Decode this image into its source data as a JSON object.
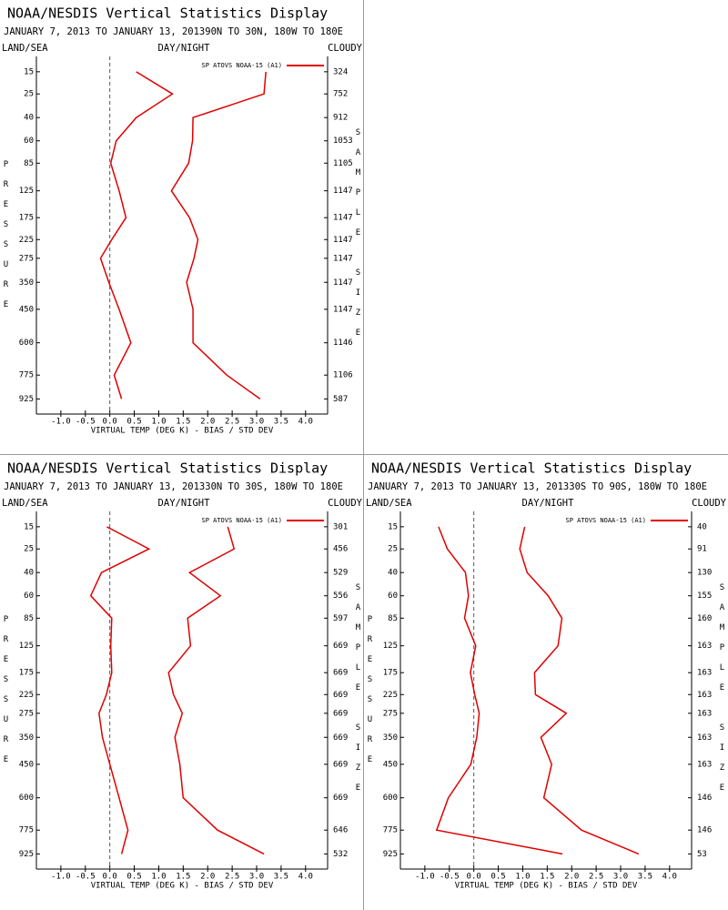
{
  "chart_data": [
    {
      "type": "line",
      "title": "NOAA/NESDIS Vertical Statistics Display",
      "subtitle": "JANUARY 7, 2013 TO JANUARY 13, 201390N TO 30N, 180W TO 180E",
      "header_left": "LAND/SEA",
      "header_center": "DAY/NIGHT",
      "header_right": "CLOUDY",
      "y_label": "PRESSURE",
      "y2_label": "SAMPLE SIZE",
      "x_label": "VIRTUAL TEMP (DEG K) - BIAS / STD DEV",
      "y": [
        15,
        25,
        40,
        60,
        85,
        125,
        175,
        225,
        275,
        350,
        450,
        600,
        775,
        925
      ],
      "sample_sizes": [
        324,
        752,
        912,
        1053,
        1105,
        1147,
        1147,
        1147,
        1147,
        1147,
        1147,
        1146,
        1106,
        587
      ],
      "series": [
        {
          "name": "SP ATOVS NOAA-15 (A1)",
          "color": "#e00000",
          "values": [
            0.54,
            1.28,
            0.54,
            0.13,
            0.02,
            0.19,
            0.33,
            0.04,
            -0.19,
            -0.02,
            0.19,
            0.43,
            0.09,
            0.24
          ],
          "std_dev": [
            3.19,
            3.15,
            1.7,
            1.69,
            1.61,
            1.26,
            1.63,
            1.8,
            1.72,
            1.57,
            1.7,
            1.7,
            2.39,
            3.07
          ]
        }
      ],
      "xlim": [
        -1.5,
        4.45
      ],
      "xticks": [
        {
          "value": -1,
          "label": "-1.0"
        },
        -0.5,
        {
          "value": 0,
          "label": "0.0"
        },
        0.5,
        {
          "value": 1,
          "label": "1.0"
        },
        1.5,
        {
          "value": 2,
          "label": "2.0"
        },
        2.5,
        {
          "value": 3,
          "label": "3.0"
        },
        3.5,
        {
          "value": 4,
          "label": "4.0"
        }
      ],
      "ylim": [
        10,
        1030
      ],
      "yticks": [
        15,
        25,
        40,
        60,
        85,
        125,
        175,
        225,
        275,
        350,
        450,
        600,
        775,
        925
      ]
    },
    {
      "type": "line",
      "title": "NOAA/NESDIS Vertical Statistics Display",
      "subtitle": "JANUARY 7, 2013 TO JANUARY 13, 201330N TO 30S, 180W TO 180E",
      "header_left": "LAND/SEA",
      "header_center": "DAY/NIGHT",
      "header_right": "CLOUDY",
      "y_label": "PRESSURE",
      "y2_label": "SAMPLE SIZE",
      "x_label": "VIRTUAL TEMP (DEG K) - BIAS / STD DEV",
      "y": [
        15,
        25,
        40,
        60,
        85,
        125,
        175,
        225,
        275,
        350,
        450,
        600,
        775,
        925
      ],
      "sample_sizes": [
        301,
        456,
        529,
        556,
        597,
        669,
        669,
        669,
        669,
        669,
        669,
        669,
        646,
        532
      ],
      "series": [
        {
          "name": "SP ATOVS NOAA-15 (A1)",
          "color": "#e00000",
          "values": [
            -0.06,
            0.8,
            -0.17,
            -0.39,
            0.04,
            0.02,
            0.04,
            -0.07,
            -0.22,
            -0.15,
            0,
            0.19,
            0.37,
            0.24
          ],
          "std_dev": [
            2.41,
            2.54,
            1.63,
            2.26,
            1.59,
            1.65,
            1.2,
            1.3,
            1.48,
            1.33,
            1.43,
            1.5,
            2.2,
            3.15
          ]
        }
      ],
      "xlim": [
        -1.5,
        4.45
      ],
      "xticks": [
        {
          "value": -1,
          "label": "-1.0"
        },
        -0.5,
        {
          "value": 0,
          "label": "0.0"
        },
        0.5,
        {
          "value": 1,
          "label": "1.0"
        },
        1.5,
        {
          "value": 2,
          "label": "2.0"
        },
        2.5,
        {
          "value": 3,
          "label": "3.0"
        },
        3.5,
        {
          "value": 4,
          "label": "4.0"
        }
      ],
      "ylim": [
        10,
        1030
      ],
      "yticks": [
        15,
        25,
        40,
        60,
        85,
        125,
        175,
        225,
        275,
        350,
        450,
        600,
        775,
        925
      ]
    },
    {
      "type": "line",
      "title": "NOAA/NESDIS Vertical Statistics Display",
      "subtitle": "JANUARY 7, 2013 TO JANUARY 13, 201330S TO 90S, 180W TO 180E",
      "header_left": "LAND/SEA",
      "header_center": "DAY/NIGHT",
      "header_right": "CLOUDY",
      "y_label": "PRESSURE",
      "y2_label": "SAMPLE SIZE",
      "x_label": "VIRTUAL TEMP (DEG K) - BIAS / STD DEV",
      "y": [
        15,
        25,
        40,
        60,
        85,
        125,
        175,
        225,
        275,
        350,
        450,
        600,
        775,
        925
      ],
      "sample_sizes": [
        40,
        91,
        130,
        155,
        160,
        163,
        163,
        163,
        163,
        163,
        163,
        146,
        146,
        53
      ],
      "series": [
        {
          "name": "SP ATOVS NOAA-15 (A1)",
          "color": "#e00000",
          "values": [
            -0.72,
            -0.54,
            -0.17,
            -0.11,
            -0.19,
            0.04,
            -0.07,
            0.02,
            0.11,
            0.06,
            -0.06,
            -0.52,
            -0.76,
            1.81
          ],
          "std_dev": [
            1.04,
            0.94,
            1.09,
            1.52,
            1.8,
            1.72,
            1.24,
            1.26,
            1.89,
            1.37,
            1.59,
            1.43,
            2.2,
            3.37
          ]
        }
      ],
      "xlim": [
        -1.5,
        4.45
      ],
      "xticks": [
        {
          "value": -1,
          "label": "-1.0"
        },
        -0.5,
        {
          "value": 0,
          "label": "0.0"
        },
        0.5,
        {
          "value": 1,
          "label": "1.0"
        },
        1.5,
        {
          "value": 2,
          "label": "2.0"
        },
        2.5,
        {
          "value": 3,
          "label": "3.0"
        },
        3.5,
        {
          "value": 4,
          "label": "4.0"
        }
      ],
      "ylim": [
        10,
        1030
      ],
      "yticks": [
        15,
        25,
        40,
        60,
        85,
        125,
        175,
        225,
        275,
        350,
        450,
        600,
        775,
        925
      ]
    }
  ]
}
